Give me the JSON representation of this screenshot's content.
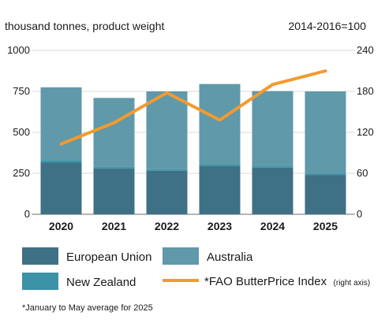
{
  "chart_data": {
    "type": "bar",
    "stacked": true,
    "categories": [
      "2020",
      "2021",
      "2022",
      "2023",
      "2024",
      "2025"
    ],
    "left_axis_label": "thousand tonnes, product weight",
    "right_axis_label": "2014-2016=100",
    "left_ylim": [
      0,
      1000
    ],
    "left_ticks": [
      "0",
      "250",
      "500",
      "750",
      "1000"
    ],
    "right_ylim": [
      0,
      240
    ],
    "right_ticks": [
      "0",
      "60",
      "120",
      "180",
      "240"
    ],
    "series": [
      {
        "name": "European Union",
        "type": "bar",
        "axis": "left",
        "color": "#3f7186",
        "values": [
          315,
          280,
          265,
          295,
          285,
          240
        ]
      },
      {
        "name": "New Zealand",
        "type": "bar",
        "axis": "left",
        "color": "#3c92a6",
        "values": [
          15,
          10,
          10,
          10,
          12,
          8
        ]
      },
      {
        "name": "Australia",
        "type": "bar",
        "axis": "left",
        "color": "#5f99aa",
        "values": [
          445,
          420,
          475,
          490,
          455,
          502
        ]
      },
      {
        "name": "*FAO ButterPrice Index",
        "type": "line",
        "axis": "right",
        "color": "#f39a2e",
        "values": [
          103,
          134,
          178,
          138,
          190,
          210
        ]
      }
    ],
    "legend": {
      "placement": "bottom",
      "right_axis_note": "(right axis)"
    },
    "footnote": "*January to May average for 2025",
    "grid": true
  }
}
